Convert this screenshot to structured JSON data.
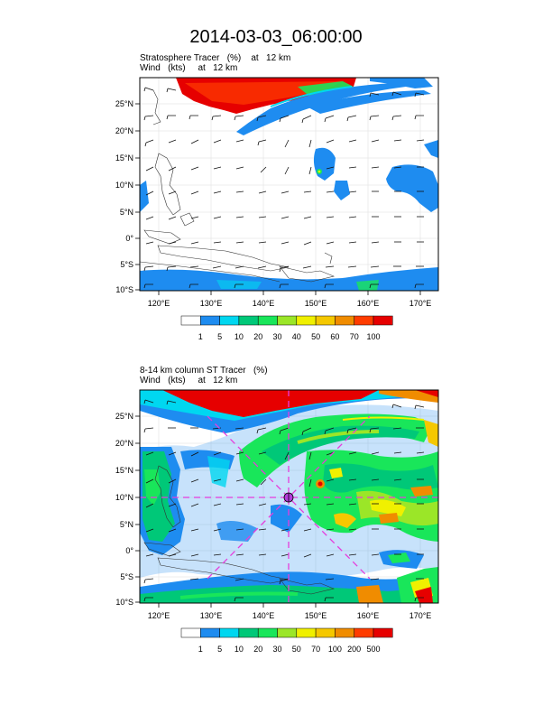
{
  "title": "2014-03-03_06:00:00",
  "panels": [
    {
      "title_line1": "Stratosphere Tracer   (%)    at   12 km",
      "title_line2": "Wind   (kts)     at   12 km",
      "lat_labels": [
        "25°N",
        "20°N",
        "15°N",
        "10°N",
        "5°N",
        "0°",
        "5°S",
        "10°S"
      ],
      "lon_labels": [
        "120°E",
        "130°E",
        "140°E",
        "150°E",
        "160°E",
        "170°E"
      ],
      "colorbar_labels": [
        "1",
        "5",
        "10",
        "20",
        "30",
        "40",
        "50",
        "60",
        "70",
        "100"
      ]
    },
    {
      "title_line1": "8-14 km column ST Tracer   (%)",
      "title_line2": "Wind   (kts)     at   12 km",
      "lat_labels": [
        "25°N",
        "20°N",
        "15°N",
        "10°N",
        "5°N",
        "0°",
        "5°S",
        "10°S"
      ],
      "lon_labels": [
        "120°E",
        "130°E",
        "140°E",
        "150°E",
        "160°E",
        "170°E"
      ],
      "colorbar_labels": [
        "1",
        "5",
        "10",
        "20",
        "30",
        "50",
        "70",
        "100",
        "200",
        "500"
      ]
    }
  ],
  "colors": {
    "scale": [
      "#ffffff",
      "#1e8cf0",
      "#00d7f0",
      "#19e65a",
      "#00c878",
      "#9be628",
      "#f0f000",
      "#f5c800",
      "#f08c00",
      "#ff3c00",
      "#e60000"
    ],
    "cross_section_lines": "#e63cdc"
  },
  "map_extent": {
    "lon": [
      115,
      173
    ],
    "lat": [
      -10,
      29
    ]
  }
}
